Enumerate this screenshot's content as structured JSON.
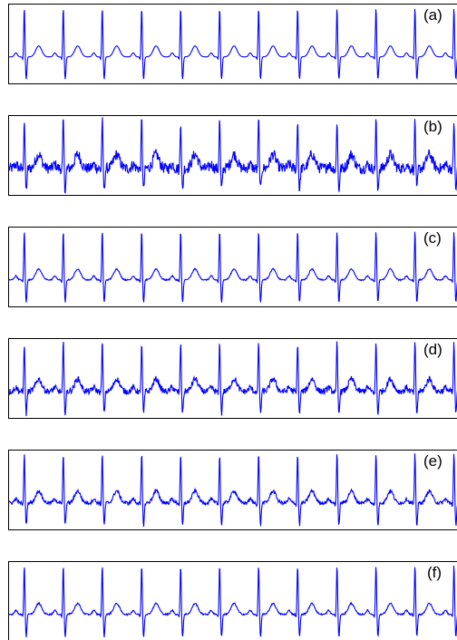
{
  "chart_data": [
    {
      "type": "line",
      "label": "(a)",
      "series": [
        {
          "color": "#0000ff",
          "noise_level": 0,
          "waveform": "clean-ecg",
          "beat_times": [
            0.36,
            1.28,
            2.2,
            3.13,
            4.05,
            4.97,
            5.89,
            6.81,
            7.74,
            8.66,
            9.58,
            10.5
          ],
          "r_peak_amplitude": 1.0,
          "s_trough_amplitude": -0.45,
          "t_wave_amplitude": 0.22,
          "p_wave_amplitude": 0.08
        }
      ],
      "xlim": [
        0,
        10.7
      ],
      "ylim": [
        -0.55,
        1.05
      ],
      "grid": false
    },
    {
      "type": "line",
      "label": "(b)",
      "series": [
        {
          "color": "#0000ff",
          "noise_level": 0.11,
          "waveform": "noisy-ecg",
          "beat_times": [
            0.36,
            1.28,
            2.2,
            3.13,
            4.05,
            4.97,
            5.89,
            6.81,
            7.74,
            8.66,
            9.58,
            10.5
          ],
          "r_peak_amplitude": 1.0,
          "s_trough_amplitude": -0.45,
          "t_wave_amplitude": 0.28,
          "p_wave_amplitude": 0.08
        }
      ],
      "xlim": [
        0,
        10.7
      ],
      "ylim": [
        -0.55,
        1.05
      ],
      "grid": false
    },
    {
      "type": "line",
      "label": "(c)",
      "series": [
        {
          "color": "#0000ff",
          "noise_level": 0.012,
          "waveform": "denoised-ecg",
          "beat_times": [
            0.36,
            1.28,
            2.2,
            3.13,
            4.05,
            4.97,
            5.89,
            6.81,
            7.74,
            8.66,
            9.58,
            10.5
          ],
          "r_peak_amplitude": 1.0,
          "s_trough_amplitude": -0.45,
          "t_wave_amplitude": 0.22,
          "p_wave_amplitude": 0.08
        }
      ],
      "xlim": [
        0,
        10.7
      ],
      "ylim": [
        -0.55,
        1.05
      ],
      "grid": false
    },
    {
      "type": "line",
      "label": "(d)",
      "series": [
        {
          "color": "#0000ff",
          "noise_level": 0.06,
          "waveform": "denoised-ecg",
          "beat_times": [
            0.36,
            1.28,
            2.2,
            3.13,
            4.05,
            4.97,
            5.89,
            6.81,
            7.74,
            8.66,
            9.58,
            10.5
          ],
          "r_peak_amplitude": 1.0,
          "s_trough_amplitude": -0.45,
          "t_wave_amplitude": 0.25,
          "p_wave_amplitude": 0.08
        }
      ],
      "xlim": [
        0,
        10.7
      ],
      "ylim": [
        -0.55,
        1.05
      ],
      "grid": false
    },
    {
      "type": "line",
      "label": "(e)",
      "series": [
        {
          "color": "#0000ff",
          "noise_level": 0.035,
          "waveform": "denoised-ecg",
          "beat_times": [
            0.36,
            1.28,
            2.2,
            3.13,
            4.05,
            4.97,
            5.89,
            6.81,
            7.74,
            8.66,
            9.58,
            10.5
          ],
          "r_peak_amplitude": 1.0,
          "s_trough_amplitude": -0.45,
          "t_wave_amplitude": 0.24,
          "p_wave_amplitude": 0.08
        }
      ],
      "xlim": [
        0,
        10.7
      ],
      "ylim": [
        -0.55,
        1.05
      ],
      "grid": false
    },
    {
      "type": "line",
      "label": "(f)",
      "series": [
        {
          "color": "#0000ff",
          "noise_level": 0.015,
          "waveform": "denoised-ecg",
          "beat_times": [
            0.36,
            1.28,
            2.2,
            3.13,
            4.05,
            4.97,
            5.89,
            6.81,
            7.74,
            8.66,
            9.58,
            10.5
          ],
          "r_peak_amplitude": 1.0,
          "s_trough_amplitude": -0.45,
          "t_wave_amplitude": 0.22,
          "p_wave_amplitude": 0.08
        }
      ],
      "xlim": [
        0,
        10.7
      ],
      "ylim": [
        -0.55,
        1.05
      ],
      "grid": false
    }
  ]
}
